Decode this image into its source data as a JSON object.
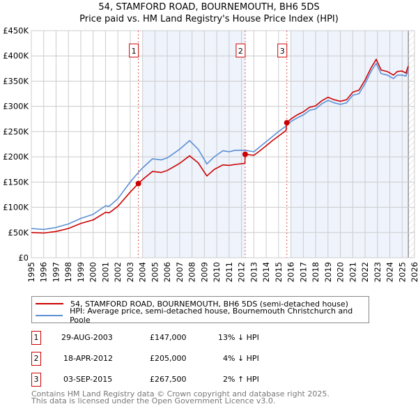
{
  "title": "54, STAMFORD ROAD, BOURNEMOUTH, BH6 5DS",
  "subtitle": "Price paid vs. HM Land Registry's House Price Index (HPI)",
  "chart_data": {
    "type": "line",
    "title": "54, STAMFORD ROAD, BOURNEMOUTH, BH6 5DS",
    "subtitle": "Price paid vs. HM Land Registry's House Price Index (HPI)",
    "xlim": [
      1995,
      2026
    ],
    "ylim": [
      0,
      450000
    ],
    "x_ticks": [
      "1995",
      "1996",
      "1997",
      "1998",
      "1999",
      "2000",
      "2001",
      "2002",
      "2003",
      "2004",
      "2005",
      "2006",
      "2007",
      "2008",
      "2009",
      "2010",
      "2011",
      "2012",
      "2013",
      "2014",
      "2015",
      "2016",
      "2017",
      "2018",
      "2019",
      "2020",
      "2021",
      "2022",
      "2023",
      "2024",
      "2025",
      "2026"
    ],
    "y_ticks": [
      {
        "v": 0,
        "label": "£0"
      },
      {
        "v": 50000,
        "label": "£50K"
      },
      {
        "v": 100000,
        "label": "£100K"
      },
      {
        "v": 150000,
        "label": "£150K"
      },
      {
        "v": 200000,
        "label": "£200K"
      },
      {
        "v": 250000,
        "label": "£250K"
      },
      {
        "v": 300000,
        "label": "£300K"
      },
      {
        "v": 350000,
        "label": "£350K"
      },
      {
        "v": 400000,
        "label": "£400K"
      },
      {
        "v": 450000,
        "label": "£450K"
      }
    ],
    "grid": true,
    "series": [
      {
        "name": "54, STAMFORD ROAD, BOURNEMOUTH, BH6 5DS (semi-detached house)",
        "color": "#cc0000",
        "points": [
          [
            1995,
            50
          ],
          [
            1996,
            49
          ],
          [
            1997,
            52
          ],
          [
            1998,
            58
          ],
          [
            1999,
            68
          ],
          [
            2000,
            75
          ],
          [
            2001,
            90
          ],
          [
            2001.3,
            89
          ],
          [
            2002,
            102
          ],
          [
            2003,
            130
          ],
          [
            2003.66,
            147
          ],
          [
            2004,
            155
          ],
          [
            2004.8,
            171
          ],
          [
            2005.5,
            169
          ],
          [
            2006,
            173
          ],
          [
            2007,
            187
          ],
          [
            2007.8,
            202
          ],
          [
            2008.5,
            188
          ],
          [
            2009.2,
            162
          ],
          [
            2009.8,
            175
          ],
          [
            2010.5,
            184
          ],
          [
            2011,
            183
          ],
          [
            2011.5,
            185
          ],
          [
            2012.28,
            187
          ],
          [
            2012.3,
            205
          ],
          [
            2013,
            203
          ],
          [
            2013.5,
            212
          ],
          [
            2014,
            222
          ],
          [
            2014.5,
            232
          ],
          [
            2015,
            241
          ],
          [
            2015.6,
            252
          ],
          [
            2015.67,
            267.5
          ],
          [
            2016,
            275
          ],
          [
            2016.5,
            283
          ],
          [
            2017,
            289
          ],
          [
            2017.5,
            298
          ],
          [
            2018,
            301
          ],
          [
            2018.5,
            311
          ],
          [
            2019,
            318
          ],
          [
            2019.5,
            313
          ],
          [
            2020,
            310
          ],
          [
            2020.5,
            313
          ],
          [
            2021,
            328
          ],
          [
            2021.5,
            332
          ],
          [
            2022,
            352
          ],
          [
            2022.5,
            377
          ],
          [
            2022.9,
            393
          ],
          [
            2023.3,
            372
          ],
          [
            2023.8,
            369
          ],
          [
            2024.3,
            362
          ],
          [
            2024.6,
            369
          ],
          [
            2025,
            370
          ],
          [
            2025.3,
            366
          ],
          [
            2025.5,
            380
          ]
        ]
      },
      {
        "name": "HPI: Average price, semi-detached house, Bournemouth Christchurch and Poole",
        "color": "#5b8fd6",
        "points": [
          [
            1995,
            58
          ],
          [
            1996,
            56
          ],
          [
            1997,
            60
          ],
          [
            1998,
            67
          ],
          [
            1999,
            78
          ],
          [
            2000,
            86
          ],
          [
            2001,
            103
          ],
          [
            2001.3,
            102
          ],
          [
            2002,
            117
          ],
          [
            2003,
            150
          ],
          [
            2003.66,
            169
          ],
          [
            2004,
            178
          ],
          [
            2004.8,
            196
          ],
          [
            2005.5,
            194
          ],
          [
            2006,
            198
          ],
          [
            2007,
            215
          ],
          [
            2007.8,
            232
          ],
          [
            2008.5,
            215
          ],
          [
            2009.2,
            186
          ],
          [
            2009.8,
            200
          ],
          [
            2010.5,
            212
          ],
          [
            2011,
            210
          ],
          [
            2011.5,
            213
          ],
          [
            2012.3,
            213
          ],
          [
            2013,
            210
          ],
          [
            2013.5,
            220
          ],
          [
            2014,
            230
          ],
          [
            2014.5,
            240
          ],
          [
            2015,
            250
          ],
          [
            2015.67,
            262
          ],
          [
            2016,
            270
          ],
          [
            2016.5,
            277
          ],
          [
            2017,
            283
          ],
          [
            2017.5,
            292
          ],
          [
            2018,
            295
          ],
          [
            2018.5,
            305
          ],
          [
            2019,
            312
          ],
          [
            2019.5,
            307
          ],
          [
            2020,
            304
          ],
          [
            2020.5,
            307
          ],
          [
            2021,
            322
          ],
          [
            2021.5,
            325
          ],
          [
            2022,
            345
          ],
          [
            2022.5,
            370
          ],
          [
            2022.9,
            385
          ],
          [
            2023.3,
            365
          ],
          [
            2023.8,
            362
          ],
          [
            2024.3,
            355
          ],
          [
            2024.6,
            362
          ],
          [
            2025,
            362
          ],
          [
            2025.3,
            360
          ],
          [
            2025.5,
            372
          ]
        ]
      }
    ],
    "y_unit": "thousands GBP",
    "sales": [
      {
        "num": "1",
        "x": 2003.66,
        "value": 147000
      },
      {
        "num": "2",
        "x": 2012.3,
        "value": 205000
      },
      {
        "num": "3",
        "x": 2015.67,
        "value": 267500
      }
    ],
    "legend_position": "below"
  },
  "legend": [
    {
      "label": "54, STAMFORD ROAD, BOURNEMOUTH, BH6 5DS (semi-detached house)",
      "color": "#cc0000"
    },
    {
      "label": "HPI: Average price, semi-detached house, Bournemouth Christchurch and Poole",
      "color": "#5b8fd6"
    }
  ],
  "transactions": [
    {
      "num": "1",
      "date": "29-AUG-2003",
      "price": "£147,000",
      "hpi": "13% ↓ HPI"
    },
    {
      "num": "2",
      "date": "18-APR-2012",
      "price": "£205,000",
      "hpi": "4% ↓ HPI"
    },
    {
      "num": "3",
      "date": "03-SEP-2015",
      "price": "£267,500",
      "hpi": "2% ↑ HPI"
    }
  ],
  "footer": {
    "line1": "Contains HM Land Registry data © Crown copyright and database right 2025.",
    "line2": "This data is licensed under the Open Government Licence v3.0."
  }
}
